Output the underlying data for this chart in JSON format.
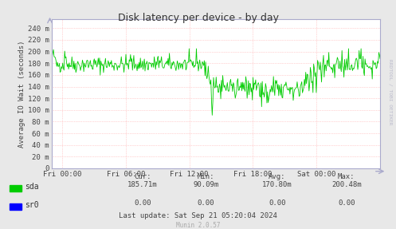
{
  "title": "Disk latency per device - by day",
  "ylabel": "Average IO Wait (seconds)",
  "bg_color": "#e8e8e8",
  "plot_bg_color": "#ffffff",
  "grid_color": "#ffaaaa",
  "line_color_sda": "#00cc00",
  "line_color_sr0": "#0000ff",
  "ytick_labels": [
    "0",
    "20 m",
    "40 m",
    "60 m",
    "80 m",
    "100 m",
    "120 m",
    "140 m",
    "160 m",
    "180 m",
    "200 m",
    "220 m",
    "240 m"
  ],
  "ytick_values": [
    0,
    0.02,
    0.04,
    0.06,
    0.08,
    0.1,
    0.12,
    0.14,
    0.16,
    0.18,
    0.2,
    0.22,
    0.24
  ],
  "ylim": [
    0,
    0.255
  ],
  "xtick_labels": [
    "Fri 00:00",
    "Fri 06:00",
    "Fri 12:00",
    "Fri 18:00",
    "Sat 00:00"
  ],
  "legend_labels": [
    "sda",
    "sr0"
  ],
  "legend_colors": [
    "#00cc00",
    "#0000ff"
  ],
  "stats_headers": [
    "Cur:",
    "Min:",
    "Avg:",
    "Max:"
  ],
  "stats_sda": [
    "185.71m",
    "90.09m",
    "170.80m",
    "200.48m"
  ],
  "stats_sr0": [
    "0.00",
    "0.00",
    "0.00",
    "0.00"
  ],
  "last_update": "Last update: Sat Sep 21 05:20:04 2024",
  "munin_version": "Munin 2.0.57",
  "rrdtool_text": "RRDTOOL / TOBI OETIKER"
}
